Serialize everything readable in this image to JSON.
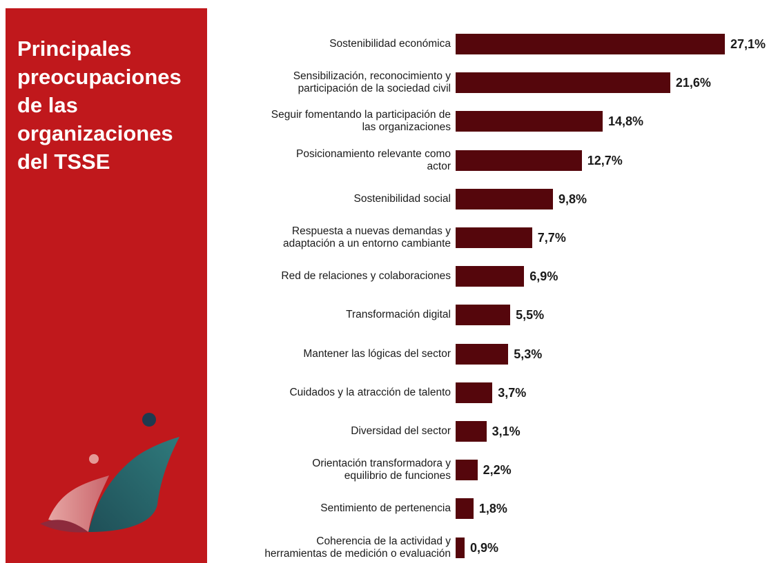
{
  "panel": {
    "title": "Principales\npreocupaciones\nde las\norganizaciones\ndel TSSE",
    "background": "#c0181c"
  },
  "logo": {
    "icon": "abstract-ribbon-figure-logo"
  },
  "chart_data": {
    "type": "bar",
    "orientation": "horizontal",
    "title": "Principales preocupaciones de las organizaciones del TSSE",
    "bar_color": "#55060c",
    "categories": [
      "Sostenibilidad económica",
      "Sensibilización, reconocimiento y\nparticipación de la sociedad civil",
      "Seguir fomentando la participación de\nlas organizaciones",
      "Posicionamiento relevante como\nactor",
      "Sostenibilidad social",
      "Respuesta a nuevas demandas y\nadaptación a un entorno cambiante",
      "Red de relaciones y colaboraciones",
      "Transformación digital",
      "Mantener las lógicas del sector",
      "Cuidados y la atracción de talento",
      "Diversidad del sector",
      "Orientación transformadora y\nequilibrio de funciones",
      "Sentimiento de pertenencia",
      "Coherencia de la actividad y\nherramientas de medición o evaluación"
    ],
    "values": [
      27.1,
      21.6,
      14.8,
      12.7,
      9.8,
      7.7,
      6.9,
      5.5,
      5.3,
      3.7,
      3.1,
      2.2,
      1.8,
      0.9
    ],
    "value_labels": [
      "27,1%",
      "21,6%",
      "14,8%",
      "12,7%",
      "9,8%",
      "7,7%",
      "6,9%",
      "5,5%",
      "5,3%",
      "3,7%",
      "3,1%",
      "2,2%",
      "1,8%",
      "0,9%"
    ],
    "xlim": [
      0,
      27.1
    ]
  }
}
